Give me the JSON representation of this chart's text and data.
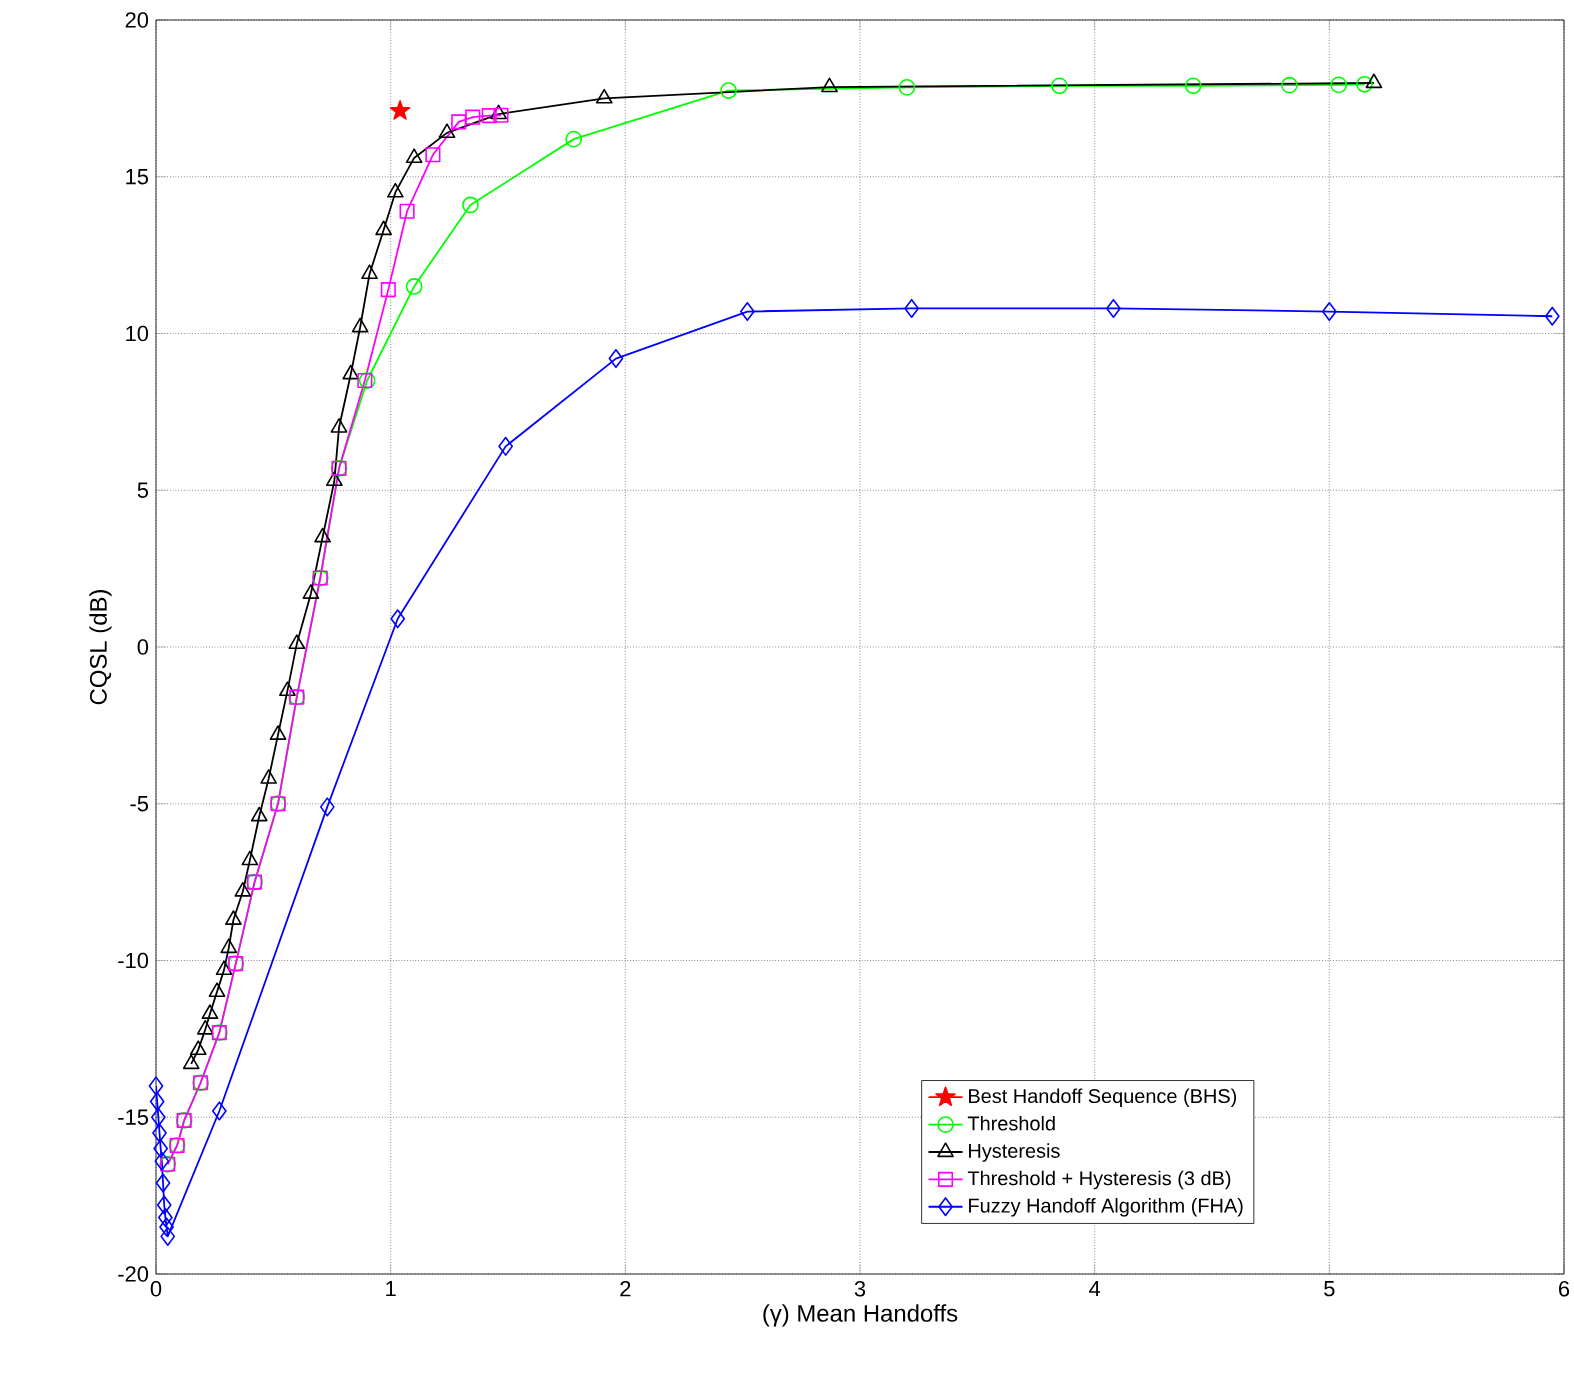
{
  "chart_data": {
    "type": "line",
    "xlabel": "(γ) Mean Handoffs",
    "ylabel": "CQSL (dB)",
    "xlim": [
      0,
      6
    ],
    "ylim": [
      -20,
      20
    ],
    "xticks": [
      0,
      1,
      2,
      3,
      4,
      5,
      6
    ],
    "yticks": [
      -20,
      -15,
      -10,
      -5,
      0,
      5,
      10,
      15,
      20
    ],
    "grid": true,
    "legend": "bottom right",
    "line_style": "solid",
    "series": [
      {
        "name": "Best Handoff Sequence (BHS)",
        "color": "#ff0000",
        "marker": "star",
        "x": [
          1.04
        ],
        "values": [
          17.1
        ]
      },
      {
        "name": "Threshold",
        "color": "#00ff00",
        "marker": "circle",
        "x": [
          0.05,
          0.09,
          0.12,
          0.19,
          0.27,
          0.34,
          0.42,
          0.52,
          0.6,
          0.7,
          0.78,
          0.9,
          1.1,
          1.34,
          1.78,
          2.44,
          3.2,
          3.85,
          4.42,
          4.83,
          5.04,
          5.15
        ],
        "values": [
          -16.5,
          -15.9,
          -15.1,
          -13.9,
          -12.3,
          -10.1,
          -7.5,
          -5.0,
          -1.6,
          2.2,
          5.7,
          8.5,
          11.5,
          14.1,
          16.2,
          17.75,
          17.85,
          17.9,
          17.9,
          17.92,
          17.93,
          17.95
        ]
      },
      {
        "name": "Hysteresis",
        "color": "#000000",
        "marker": "triangle",
        "x": [
          0.15,
          0.18,
          0.21,
          0.23,
          0.26,
          0.29,
          0.31,
          0.33,
          0.37,
          0.4,
          0.44,
          0.48,
          0.52,
          0.56,
          0.6,
          0.66,
          0.71,
          0.76,
          0.78,
          0.83,
          0.87,
          0.91,
          0.97,
          1.02,
          1.1,
          1.24,
          1.46,
          1.91,
          2.87,
          5.19
        ],
        "values": [
          -13.3,
          -12.85,
          -12.2,
          -11.7,
          -11.0,
          -10.3,
          -9.6,
          -8.7,
          -7.8,
          -6.8,
          -5.4,
          -4.2,
          -2.8,
          -1.4,
          0.1,
          1.7,
          3.5,
          5.3,
          7.0,
          8.7,
          10.2,
          11.9,
          13.3,
          14.5,
          15.6,
          16.4,
          17.0,
          17.5,
          17.86,
          17.99
        ]
      },
      {
        "name": "Threshold + Hysteresis (3 dB)",
        "color": "#ff00ff",
        "marker": "square",
        "x": [
          0.05,
          0.09,
          0.12,
          0.19,
          0.27,
          0.34,
          0.42,
          0.52,
          0.6,
          0.7,
          0.78,
          0.89,
          0.99,
          1.07,
          1.18,
          1.29,
          1.35,
          1.42,
          1.47
        ],
        "values": [
          -16.5,
          -15.9,
          -15.1,
          -13.9,
          -12.3,
          -10.1,
          -7.5,
          -5.0,
          -1.6,
          2.2,
          5.7,
          8.5,
          11.4,
          13.9,
          15.7,
          16.75,
          16.9,
          16.95,
          16.96
        ]
      },
      {
        "name": "Fuzzy Handoff Algorithm (FHA)",
        "color": "#0000ff",
        "marker": "diamond",
        "x": [
          0.0,
          0.005,
          0.01,
          0.015,
          0.02,
          0.025,
          0.03,
          0.035,
          0.04,
          0.045,
          0.05,
          0.27,
          0.73,
          1.03,
          1.49,
          1.96,
          2.52,
          3.22,
          4.08,
          5.0,
          5.95
        ],
        "values": [
          -14.0,
          -14.5,
          -15.0,
          -15.5,
          -16.0,
          -16.4,
          -17.1,
          -17.8,
          -18.2,
          -18.5,
          -18.8,
          -14.8,
          -5.1,
          0.9,
          6.4,
          9.2,
          10.7,
          10.8,
          10.8,
          10.7,
          10.55
        ]
      }
    ]
  }
}
